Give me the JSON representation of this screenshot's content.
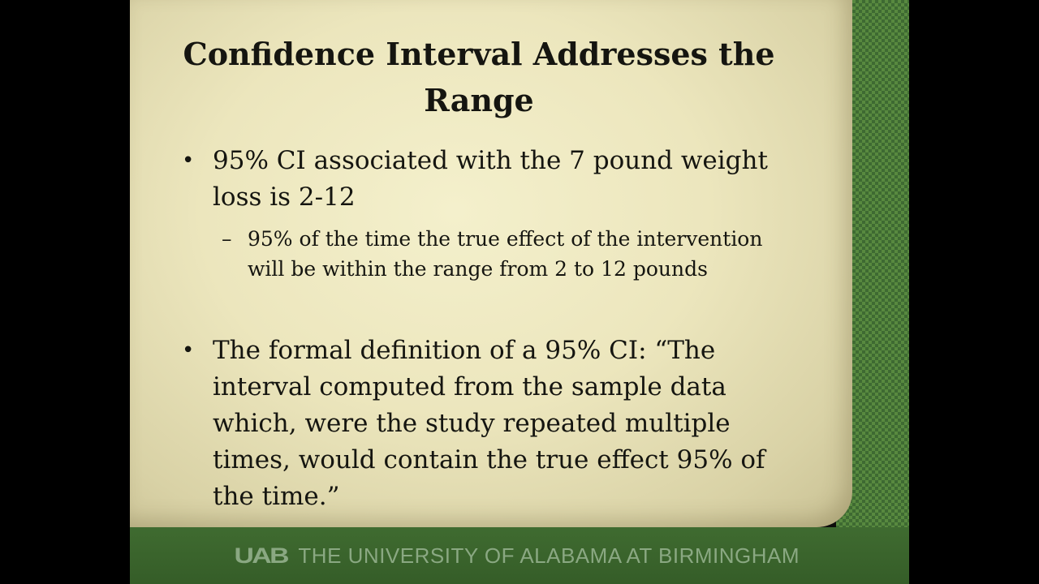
{
  "slide": {
    "title": "Confidence Interval Addresses the Range",
    "bullets": [
      {
        "text": "95% CI associated with the 7 pound weight loss is 2-12",
        "sub": "95% of the time the true effect of the intervention will be within the range from 2 to 12 pounds"
      },
      {
        "text": "The formal definition of a 95% CI: “The interval computed from the sample data which, were the study repeated multiple times, would contain the true effect 95% of the time.”"
      }
    ],
    "bullet_marker": "•",
    "dash_marker": "–"
  },
  "footer": {
    "logo": "UAB",
    "institution": "THE UNIVERSITY OF ALABAMA AT BIRMINGHAM"
  }
}
